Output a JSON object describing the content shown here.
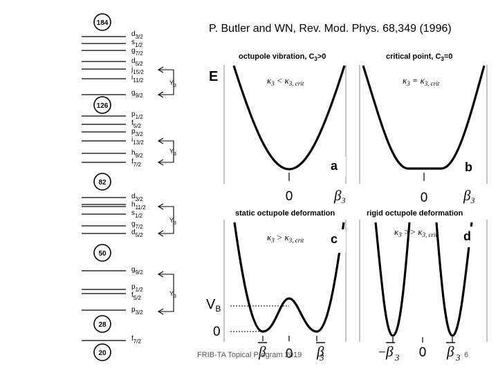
{
  "citation": "P. Butler and WN, Rev. Mod. Phys. 68,349 (1996)",
  "footer": "FRIB-TA Topical Program 2019",
  "slide_number": "6",
  "level_scheme": {
    "magic_numbers": [
      "184",
      "126",
      "82",
      "50",
      "28",
      "20"
    ],
    "orbitals": {
      "g1": [
        {
          "n": "d",
          "sub": "3/2"
        },
        {
          "n": "s",
          "sub": "1/2"
        },
        {
          "n": "g",
          "sub": "7/2"
        },
        {
          "n": "d",
          "sub": "5/2"
        },
        {
          "n": "j",
          "sub": "15/2"
        },
        {
          "n": "i",
          "sub": "11/2"
        },
        {
          "n": "g",
          "sub": "9/2"
        }
      ],
      "g2": [
        {
          "n": "p",
          "sub": "1/2"
        },
        {
          "n": "f",
          "sub": "5/2"
        },
        {
          "n": "p",
          "sub": "3/2"
        },
        {
          "n": "i",
          "sub": "13/2"
        },
        {
          "n": "h",
          "sub": "9/2"
        },
        {
          "n": "f",
          "sub": "7/2"
        }
      ],
      "g3": [
        {
          "n": "d",
          "sub": "3/2"
        },
        {
          "n": "h",
          "sub": "11/2"
        },
        {
          "n": "s",
          "sub": "1/2"
        },
        {
          "n": "g",
          "sub": "7/2"
        },
        {
          "n": "d",
          "sub": "5/2"
        }
      ],
      "g4": [
        {
          "n": "g",
          "sub": "9/2"
        },
        {
          "n": "p",
          "sub": "1/2"
        },
        {
          "n": "f",
          "sub": "5/2"
        },
        {
          "n": "p",
          "sub": "3/2"
        }
      ],
      "g5": [
        {
          "n": "f",
          "sub": "7/2"
        }
      ]
    },
    "coupling_label": "Y",
    "coupling_sub": "3"
  },
  "panels": {
    "energy_label": "E",
    "a": {
      "heading": "octupole vibration, C",
      "heading_sub": "3",
      "heading_rel": ">0",
      "letter": "a",
      "kappa": "κ",
      "kappa_sub": "3",
      "relation": "<",
      "crit": "κ",
      "crit_sub": "3, crit",
      "origin": "0",
      "beta": "β",
      "beta_sub": "3"
    },
    "b": {
      "heading": "critical point, C",
      "heading_sub": "3",
      "heading_rel": "=0",
      "letter": "b",
      "kappa": "κ",
      "kappa_sub": "3",
      "relation": "=",
      "crit": "κ",
      "crit_sub": "3, crit",
      "origin": "0",
      "beta": "β",
      "beta_sub": "3"
    },
    "c": {
      "heading": "static octupole deformation",
      "letter": "c",
      "kappa": "κ",
      "kappa_sub": "3",
      "relation": ">",
      "crit": "κ",
      "crit_sub": "3, crit",
      "origin": "0",
      "beta_bar": "β",
      "beta": "β",
      "beta_sub": "3",
      "vb_label": "V",
      "vb_sub": "B",
      "zero_label": "0"
    },
    "d": {
      "heading": "rigid octupole deformation",
      "letter": "d",
      "kappa": "κ",
      "kappa_sub": "3",
      "relation": ">>",
      "crit": "κ",
      "crit_sub": "3, crit",
      "origin": "0",
      "minus": "−",
      "beta_bar": "β",
      "beta_sub": "3"
    }
  }
}
